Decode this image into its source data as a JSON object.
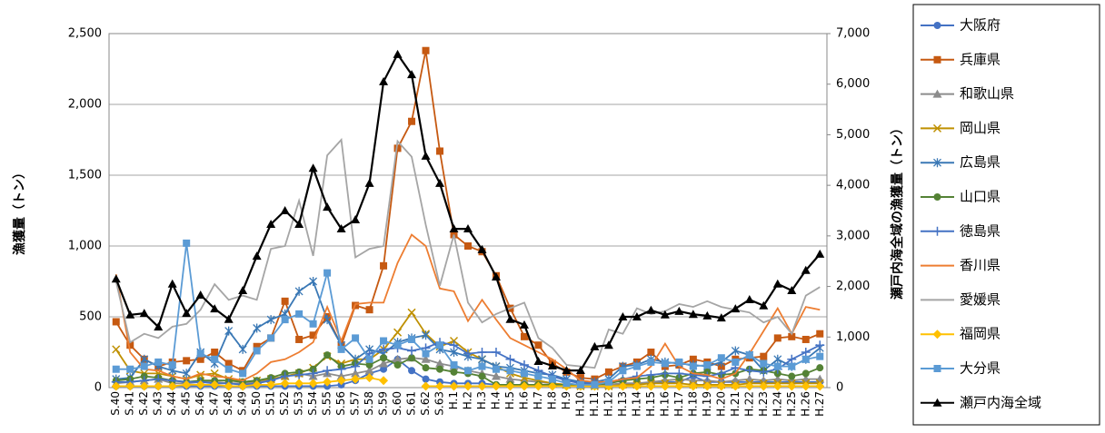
{
  "chart_data": {
    "type": "line",
    "ylabel": "漁獲量（トン）",
    "y2label": "瀬戸内海全域の漁獲量（トン）",
    "categories": [
      "S.40",
      "S.41",
      "S.42",
      "S.43",
      "S.44",
      "S.45",
      "S.46",
      "S.47",
      "S.48",
      "S.49",
      "S.50",
      "S.51",
      "S.52",
      "S.53",
      "S.54",
      "S.55",
      "S.56",
      "S.57",
      "S.58",
      "S.59",
      "S.60",
      "S.61",
      "S.62",
      "S.63",
      "H.1",
      "H.2",
      "H.3",
      "H.4",
      "H.5",
      "H.6",
      "H.7",
      "H.8",
      "H.9",
      "H.10",
      "H.11",
      "H.12",
      "H.13",
      "H.14",
      "H.15",
      "H.16",
      "H.17",
      "H.18",
      "H.19",
      "H.20",
      "H.21",
      "H.22",
      "H.23",
      "H.24",
      "H.25",
      "H.26",
      "H.27"
    ],
    "ylim": [
      0,
      2500
    ],
    "yticks": [
      0,
      500,
      {
        "value": 1000,
        "label": "1,000"
      },
      {
        "value": 1500,
        "label": "1,500"
      },
      {
        "value": 2000,
        "label": "2,000"
      },
      {
        "value": 2500,
        "label": "2,500"
      }
    ],
    "y2lim": [
      0,
      7000
    ],
    "y2ticks": [
      0,
      {
        "value": 1000,
        "label": "1,000"
      },
      {
        "value": 2000,
        "label": "2,000"
      },
      {
        "value": 3000,
        "label": "3,000"
      },
      {
        "value": 4000,
        "label": "4,000"
      },
      {
        "value": 5000,
        "label": "5,000"
      },
      {
        "value": 6000,
        "label": "6,000"
      },
      {
        "value": 7000,
        "label": "7,000"
      }
    ],
    "grid": true,
    "legend": "right",
    "series": [
      {
        "name": "大阪府",
        "color": "#4472c4",
        "marker": "circle",
        "values": [
          10,
          10,
          10,
          10,
          10,
          10,
          10,
          10,
          10,
          10,
          10,
          10,
          10,
          10,
          10,
          10,
          20,
          50,
          100,
          130,
          200,
          120,
          60,
          40,
          30,
          30,
          30,
          20,
          20,
          20,
          20,
          20,
          20,
          20,
          20,
          20,
          30,
          30,
          30,
          40,
          40,
          80,
          40,
          40,
          40,
          40,
          40,
          40,
          40,
          40,
          40
        ]
      },
      {
        "name": "兵庫県",
        "color": "#c65911",
        "marker": "square",
        "values": [
          465,
          300,
          200,
          150,
          180,
          190,
          200,
          250,
          170,
          120,
          290,
          350,
          610,
          340,
          370,
          500,
          300,
          580,
          550,
          860,
          1690,
          1880,
          2380,
          1670,
          1080,
          1000,
          960,
          790,
          560,
          360,
          300,
          170,
          110,
          70,
          60,
          110,
          150,
          180,
          250,
          150,
          160,
          200,
          180,
          150,
          200,
          210,
          220,
          350,
          360,
          340,
          380
        ]
      },
      {
        "name": "和歌山県",
        "color": "#8c8c8c",
        "marker": "triangle",
        "values": [
          30,
          40,
          50,
          60,
          30,
          30,
          40,
          40,
          30,
          30,
          40,
          60,
          80,
          100,
          80,
          100,
          80,
          100,
          120,
          170,
          200,
          210,
          200,
          170,
          150,
          120,
          100,
          80,
          60,
          50,
          40,
          30,
          20,
          20,
          20,
          20,
          30,
          30,
          40,
          50,
          60,
          50,
          50,
          40,
          50,
          60,
          50,
          60,
          50,
          60,
          60
        ]
      },
      {
        "name": "岡山県",
        "color": "#bf9000",
        "marker": "x",
        "values": [
          270,
          120,
          100,
          100,
          80,
          60,
          90,
          100,
          60,
          40,
          50,
          60,
          80,
          100,
          140,
          220,
          170,
          200,
          200,
          270,
          390,
          530,
          380,
          290,
          330,
          250,
          200,
          150,
          100,
          70,
          50,
          30,
          20,
          10,
          10,
          10,
          20,
          20,
          30,
          30,
          30,
          20,
          20,
          20,
          20,
          30,
          30,
          30,
          30,
          30,
          30
        ]
      },
      {
        "name": "広島県",
        "color": "#3a78b5",
        "marker": "asterisk",
        "values": [
          60,
          70,
          200,
          150,
          120,
          100,
          250,
          170,
          400,
          270,
          420,
          480,
          520,
          680,
          750,
          480,
          300,
          200,
          270,
          240,
          320,
          350,
          370,
          270,
          250,
          220,
          200,
          150,
          140,
          120,
          100,
          90,
          60,
          40,
          40,
          60,
          150,
          160,
          200,
          180,
          170,
          160,
          150,
          180,
          260,
          230,
          120,
          200,
          150,
          200,
          280
        ]
      },
      {
        "name": "山口県",
        "color": "#548235",
        "marker": "circle",
        "values": [
          50,
          60,
          80,
          70,
          50,
          40,
          50,
          50,
          50,
          40,
          50,
          70,
          100,
          110,
          130,
          230,
          150,
          170,
          160,
          210,
          160,
          210,
          140,
          130,
          110,
          100,
          80,
          20,
          20,
          20,
          20,
          20,
          20,
          20,
          20,
          30,
          50,
          60,
          70,
          90,
          70,
          100,
          110,
          90,
          100,
          130,
          120,
          100,
          80,
          100,
          140
        ]
      },
      {
        "name": "徳島県",
        "color": "#4472c4",
        "marker": "plus",
        "values": [
          40,
          40,
          50,
          60,
          50,
          40,
          40,
          30,
          30,
          20,
          30,
          50,
          80,
          90,
          100,
          120,
          130,
          150,
          240,
          270,
          280,
          260,
          280,
          320,
          300,
          240,
          250,
          250,
          200,
          160,
          120,
          80,
          50,
          30,
          30,
          40,
          60,
          80,
          90,
          100,
          100,
          90,
          80,
          100,
          140,
          120,
          110,
          130,
          200,
          250,
          300
        ]
      },
      {
        "name": "香川県",
        "color": "#ed7d31",
        "marker": "none",
        "values": [
          800,
          250,
          130,
          120,
          80,
          60,
          100,
          80,
          70,
          50,
          100,
          180,
          200,
          250,
          320,
          570,
          330,
          590,
          600,
          600,
          880,
          1080,
          1000,
          700,
          680,
          470,
          620,
          480,
          350,
          300,
          250,
          200,
          130,
          50,
          40,
          40,
          60,
          70,
          150,
          310,
          150,
          100,
          90,
          60,
          100,
          240,
          400,
          560,
          380,
          570,
          550
        ]
      },
      {
        "name": "愛媛県",
        "color": "#a5a5a5",
        "marker": "none",
        "values": [
          750,
          320,
          380,
          350,
          430,
          450,
          550,
          730,
          620,
          650,
          620,
          980,
          1000,
          1320,
          930,
          1640,
          1750,
          920,
          980,
          1000,
          1740,
          1630,
          1150,
          720,
          1080,
          600,
          460,
          520,
          560,
          600,
          350,
          280,
          160,
          150,
          140,
          410,
          380,
          560,
          520,
          540,
          590,
          570,
          610,
          570,
          550,
          530,
          460,
          500,
          380,
          650,
          710
        ]
      },
      {
        "name": "福岡県",
        "color": "#ffc000",
        "marker": "diamond",
        "values": [
          10,
          10,
          10,
          10,
          10,
          20,
          20,
          20,
          10,
          10,
          20,
          20,
          30,
          30,
          30,
          40,
          50,
          60,
          70,
          50,
          null,
          null,
          10,
          10,
          10,
          10,
          10,
          10,
          10,
          10,
          10,
          10,
          10,
          10,
          10,
          10,
          10,
          10,
          10,
          10,
          10,
          10,
          10,
          10,
          10,
          10,
          10,
          10,
          10,
          10,
          10
        ]
      },
      {
        "name": "大分県",
        "color": "#5b9bd5",
        "marker": "square",
        "values": [
          130,
          130,
          150,
          180,
          160,
          1020,
          240,
          200,
          130,
          100,
          260,
          350,
          480,
          520,
          450,
          810,
          270,
          350,
          200,
          330,
          300,
          340,
          240,
          300,
          160,
          120,
          150,
          130,
          120,
          100,
          80,
          60,
          30,
          20,
          20,
          40,
          120,
          150,
          180,
          170,
          180,
          150,
          160,
          210,
          180,
          230,
          170,
          150,
          150,
          200,
          220
        ]
      },
      {
        "name": "瀬戸内海全域",
        "color": "#000000",
        "marker": "triangle",
        "axis": "y2",
        "values": [
          2150,
          1440,
          1470,
          1200,
          2050,
          1470,
          1830,
          1560,
          1350,
          1920,
          2600,
          3230,
          3500,
          3230,
          4340,
          3570,
          3140,
          3320,
          4040,
          6050,
          6590,
          6190,
          4580,
          4040,
          3140,
          3140,
          2730,
          2190,
          1350,
          1240,
          520,
          430,
          340,
          340,
          810,
          840,
          1400,
          1400,
          1530,
          1440,
          1510,
          1450,
          1420,
          1380,
          1560,
          1740,
          1620,
          2050,
          1920,
          2320,
          2640
        ]
      }
    ]
  }
}
